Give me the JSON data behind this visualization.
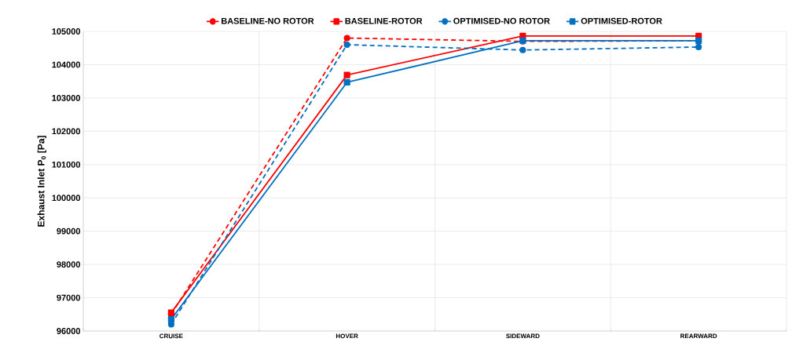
{
  "chart_data": {
    "type": "line",
    "ylabel": "Exhaust Inlet P$_{0}$ [Pa]",
    "categories": [
      "CRUISE",
      "HOVER",
      "SIDEWARD",
      "REARWARD"
    ],
    "series": [
      {
        "name": "BASELINE-NO ROTOR",
        "color": "#ff0000",
        "marker": "circle",
        "line_style": "dashed",
        "values": [
          96500,
          104800,
          104700,
          104720
        ]
      },
      {
        "name": "BASELINE-ROTOR",
        "color": "#ff0000",
        "marker": "square",
        "line_style": "solid",
        "values": [
          96550,
          103690,
          104860,
          104860
        ]
      },
      {
        "name": "OPTIMISED-NO ROTOR",
        "color": "#0070c0",
        "marker": "circle",
        "line_style": "dashed",
        "values": [
          96200,
          104600,
          104440,
          104530
        ]
      },
      {
        "name": "OPTIMISED-ROTOR",
        "color": "#0070c0",
        "marker": "square",
        "line_style": "solid",
        "values": [
          96350,
          103470,
          104720,
          104720
        ]
      }
    ],
    "ylim": [
      96000,
      105000
    ],
    "yticks": [
      96000,
      97000,
      98000,
      99000,
      100000,
      101000,
      102000,
      103000,
      104000,
      105000
    ],
    "grid": true,
    "legend": "top"
  }
}
